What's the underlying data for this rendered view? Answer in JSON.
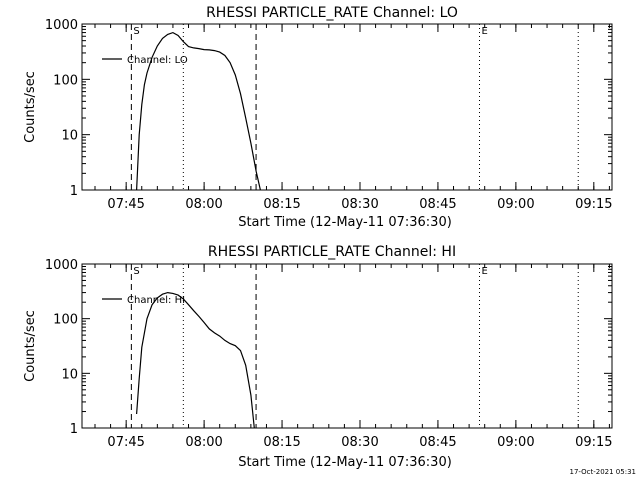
{
  "footer": {
    "timestamp": "17-Oct-2021 05:31"
  },
  "chart_data": [
    {
      "type": "line",
      "title": "RHESSI PARTICLE_RATE Channel: LO",
      "xlabel": "Start Time (12-May-11 07:36:30)",
      "ylabel": "Counts/sec",
      "y_scale": "log",
      "ylim": [
        1,
        1000
      ],
      "xlim": [
        "07:36:30",
        "09:18:30"
      ],
      "x_ticks": [
        "07:45",
        "08:00",
        "08:15",
        "08:30",
        "08:45",
        "09:00",
        "09:15"
      ],
      "y_ticks": [
        "1",
        "10",
        "100",
        "1000"
      ],
      "legend": "top-left",
      "series": [
        {
          "name": "Channel: LO",
          "color": "#000000",
          "x": [
            "07:47:00",
            "07:47:30",
            "07:48:00",
            "07:48:30",
            "07:49:00",
            "07:50:00",
            "07:51:00",
            "07:52:00",
            "07:53:00",
            "07:54:00",
            "07:55:00",
            "07:56:00",
            "07:57:00",
            "07:58:00",
            "07:59:00",
            "08:00:00",
            "08:01:00",
            "08:02:00",
            "08:03:00",
            "08:04:00",
            "08:05:00",
            "08:06:00",
            "08:07:00",
            "08:08:00",
            "08:09:00",
            "08:10:00",
            "08:10:50"
          ],
          "y": [
            1,
            10,
            35,
            80,
            130,
            250,
            400,
            550,
            650,
            700,
            620,
            480,
            390,
            370,
            360,
            345,
            340,
            330,
            310,
            270,
            200,
            120,
            55,
            20,
            7,
            2.2,
            1
          ]
        }
      ],
      "annotations": [
        {
          "type": "dashed-vline",
          "x": "07:46:00",
          "label": "S"
        },
        {
          "type": "dotted-vline",
          "x": "07:56:00",
          "label": ""
        },
        {
          "type": "dashed-vline",
          "x": "08:10:00",
          "label": ""
        },
        {
          "type": "dotted-vline",
          "x": "08:53:00",
          "label": "E"
        },
        {
          "type": "dotted-vline",
          "x": "09:12:00",
          "label": ""
        }
      ]
    },
    {
      "type": "line",
      "title": "RHESSI PARTICLE_RATE Channel: HI",
      "xlabel": "Start Time (12-May-11 07:36:30)",
      "ylabel": "Counts/sec",
      "y_scale": "log",
      "ylim": [
        1,
        1000
      ],
      "xlim": [
        "07:36:30",
        "09:18:30"
      ],
      "x_ticks": [
        "07:45",
        "08:00",
        "08:15",
        "08:30",
        "08:45",
        "09:00",
        "09:15"
      ],
      "y_ticks": [
        "1",
        "10",
        "100",
        "1000"
      ],
      "legend": "top-left",
      "series": [
        {
          "name": "Channel: HI",
          "color": "#000000",
          "x": [
            "07:47:00",
            "07:47:30",
            "07:48:00",
            "07:49:00",
            "07:50:00",
            "07:51:00",
            "07:52:00",
            "07:53:00",
            "07:54:00",
            "07:55:00",
            "07:56:00",
            "07:57:00",
            "07:58:00",
            "07:59:00",
            "08:00:00",
            "08:01:00",
            "08:02:00",
            "08:03:00",
            "08:04:00",
            "08:05:00",
            "08:06:00",
            "08:07:00",
            "08:08:00",
            "08:09:00",
            "08:09:40"
          ],
          "y": [
            1.8,
            8,
            30,
            100,
            180,
            240,
            280,
            300,
            290,
            270,
            230,
            180,
            140,
            110,
            85,
            65,
            55,
            48,
            40,
            35,
            32,
            26,
            14,
            4,
            1
          ]
        }
      ],
      "annotations": [
        {
          "type": "dashed-vline",
          "x": "07:46:00",
          "label": "S"
        },
        {
          "type": "dotted-vline",
          "x": "07:56:00",
          "label": ""
        },
        {
          "type": "dashed-vline",
          "x": "08:10:00",
          "label": ""
        },
        {
          "type": "dotted-vline",
          "x": "08:53:00",
          "label": "E"
        },
        {
          "type": "dotted-vline",
          "x": "09:12:00",
          "label": ""
        }
      ]
    }
  ]
}
